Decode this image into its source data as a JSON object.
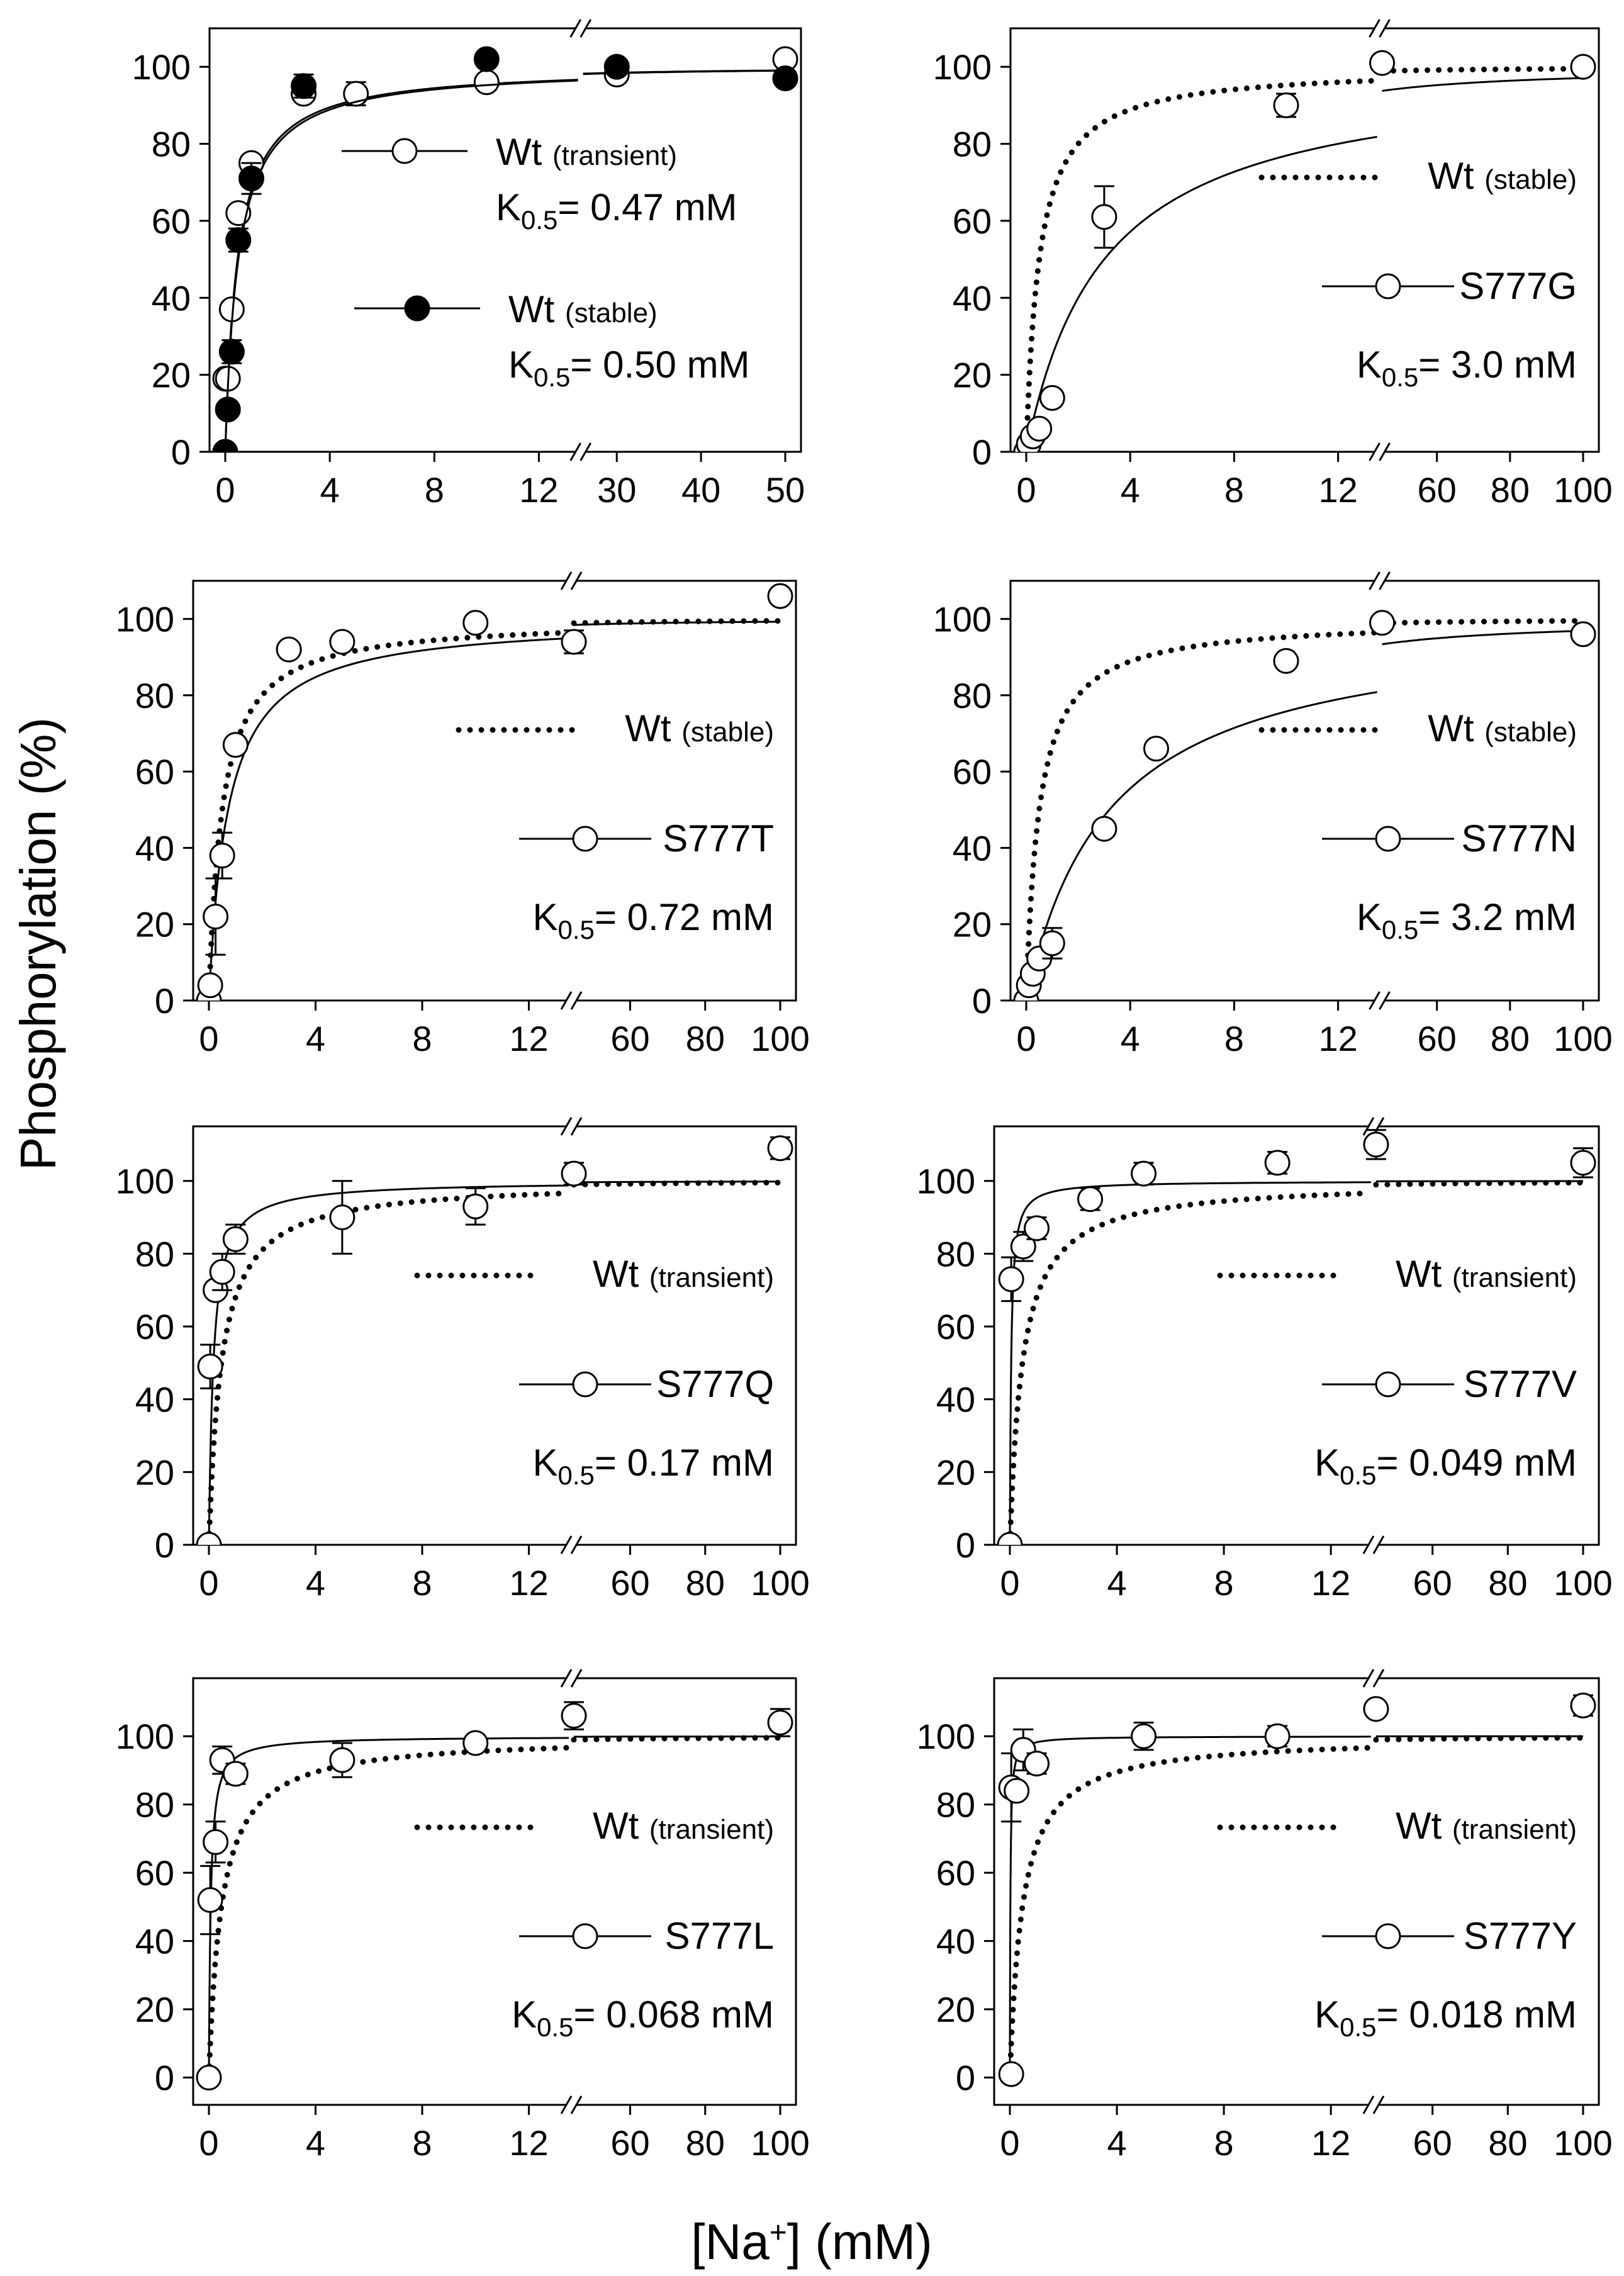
{
  "figure": {
    "ylabel": "Phosphorylation (%)",
    "xlabel_prefix": "[Na",
    "xlabel_sup": "+",
    "xlabel_suffix": "] (mM)"
  },
  "chart_data": [
    {
      "id": "wt",
      "type": "scatter",
      "axis": "A",
      "ylim": [
        0,
        110
      ],
      "yticks": [
        "0",
        "20",
        "40",
        "60",
        "80",
        "100"
      ],
      "xticks": [
        "0",
        "4",
        "8",
        "12",
        "30",
        "40",
        "50"
      ],
      "series": [
        {
          "name": "Wt (transient)",
          "marker": "open",
          "line": "solid",
          "k05": 0.47,
          "points": [
            [
              0,
              19,
              0
            ],
            [
              0.1,
              19,
              0
            ],
            [
              0.25,
              37,
              0
            ],
            [
              0.5,
              62,
              0
            ],
            [
              1,
              75,
              0
            ],
            [
              3,
              93,
              0
            ],
            [
              5,
              93,
              3
            ],
            [
              10,
              96,
              0
            ],
            [
              30,
              98,
              0
            ],
            [
              50,
              102,
              0
            ]
          ]
        },
        {
          "name": "Wt (stable)",
          "marker": "filled",
          "line": "solid",
          "k05": 0.5,
          "points": [
            [
              0,
              0,
              0
            ],
            [
              0.1,
              11,
              0
            ],
            [
              0.25,
              26,
              3
            ],
            [
              0.5,
              55,
              3
            ],
            [
              1,
              71,
              4
            ],
            [
              3,
              95,
              3
            ],
            [
              10,
              102,
              0
            ],
            [
              30,
              100,
              0
            ],
            [
              50,
              97,
              0
            ]
          ]
        }
      ],
      "legend": [
        {
          "style": "open",
          "name": "Wt",
          "qualifier": "(transient)",
          "k_label": "K",
          "k_sub": "0.5",
          "k_value": "= 0.47 mM"
        },
        {
          "style": "filled",
          "name": "Wt",
          "qualifier": "(stable)",
          "k_label": "K",
          "k_sub": "0.5",
          "k_value": "= 0.50 mM"
        }
      ]
    },
    {
      "id": "s777g",
      "type": "scatter",
      "axis": "B",
      "ylim": [
        0,
        110
      ],
      "yticks": [
        "0",
        "20",
        "40",
        "60",
        "80",
        "100"
      ],
      "xticks": [
        "0",
        "4",
        "8",
        "12",
        "60",
        "80",
        "100"
      ],
      "series": [
        {
          "name": "Wt (stable)",
          "marker": "none",
          "line": "dotted",
          "k05": 0.5,
          "points": []
        },
        {
          "name": "S777G",
          "marker": "open",
          "line": "solid",
          "k05": 3.0,
          "points": [
            [
              0,
              0,
              0
            ],
            [
              0.1,
              2,
              0
            ],
            [
              0.25,
              4,
              0
            ],
            [
              0.5,
              6,
              0
            ],
            [
              1,
              14,
              2
            ],
            [
              3,
              61,
              8
            ],
            [
              10,
              90,
              3
            ],
            [
              45,
              101,
              0
            ],
            [
              100,
              100,
              0
            ]
          ]
        }
      ],
      "legend": [
        {
          "style": "dotted",
          "name": "Wt",
          "qualifier": "(stable)"
        },
        {
          "style": "open",
          "name": "S777G"
        },
        {
          "style": "k",
          "k_label": "K",
          "k_sub": "0.5",
          "k_value": "= 3.0 mM"
        }
      ]
    },
    {
      "id": "s777t",
      "type": "scatter",
      "axis": "B",
      "ylim": [
        0,
        110
      ],
      "yticks": [
        "0",
        "20",
        "40",
        "60",
        "80",
        "100"
      ],
      "xticks": [
        "0",
        "4",
        "8",
        "12",
        "60",
        "80",
        "100"
      ],
      "series": [
        {
          "name": "Wt (stable)",
          "marker": "none",
          "line": "dotted",
          "k05": 0.5,
          "points": []
        },
        {
          "name": "S777T",
          "marker": "open",
          "line": "solid",
          "k05": 0.72,
          "points": [
            [
              0,
              0,
              0
            ],
            [
              0.05,
              4,
              0
            ],
            [
              0.25,
              22,
              10
            ],
            [
              0.5,
              38,
              6
            ],
            [
              1,
              67,
              0
            ],
            [
              3,
              92,
              0
            ],
            [
              5,
              94,
              0
            ],
            [
              10,
              99,
              0
            ],
            [
              45,
              94,
              3
            ],
            [
              100,
              106,
              0
            ]
          ]
        }
      ],
      "legend": [
        {
          "style": "dotted",
          "name": "Wt",
          "qualifier": "(stable)"
        },
        {
          "style": "open",
          "name": "S777T"
        },
        {
          "style": "k",
          "k_label": "K",
          "k_sub": "0.5",
          "k_value": "= 0.72 mM"
        }
      ]
    },
    {
      "id": "s777n",
      "type": "scatter",
      "axis": "B",
      "ylim": [
        0,
        110
      ],
      "yticks": [
        "0",
        "20",
        "40",
        "60",
        "80",
        "100"
      ],
      "xticks": [
        "0",
        "4",
        "8",
        "12",
        "60",
        "80",
        "100"
      ],
      "series": [
        {
          "name": "Wt (stable)",
          "marker": "none",
          "line": "dotted",
          "k05": 0.5,
          "points": []
        },
        {
          "name": "S777N",
          "marker": "open",
          "line": "solid",
          "k05": 3.2,
          "points": [
            [
              0,
              0,
              0
            ],
            [
              0.1,
              4,
              0
            ],
            [
              0.25,
              7,
              0
            ],
            [
              0.5,
              11,
              0
            ],
            [
              1,
              15,
              4
            ],
            [
              3,
              45,
              0
            ],
            [
              5,
              66,
              0
            ],
            [
              10,
              89,
              0
            ],
            [
              45,
              99,
              0
            ],
            [
              100,
              96,
              0
            ]
          ]
        }
      ],
      "legend": [
        {
          "style": "dotted",
          "name": "Wt",
          "qualifier": "(stable)"
        },
        {
          "style": "open",
          "name": "S777N"
        },
        {
          "style": "k",
          "k_label": "K",
          "k_sub": "0.5",
          "k_value": "= 3.2 mM"
        }
      ]
    },
    {
      "id": "s777q",
      "type": "scatter",
      "axis": "B",
      "ylim": [
        0,
        115
      ],
      "yticks": [
        "0",
        "20",
        "40",
        "60",
        "80",
        "100"
      ],
      "xticks": [
        "0",
        "4",
        "8",
        "12",
        "60",
        "80",
        "100"
      ],
      "series": [
        {
          "name": "Wt (transient)",
          "marker": "none",
          "line": "dotted",
          "k05": 0.47,
          "points": []
        },
        {
          "name": "S777Q",
          "marker": "open",
          "line": "solid",
          "k05": 0.17,
          "points": [
            [
              0,
              0,
              0
            ],
            [
              0.05,
              49,
              6
            ],
            [
              0.25,
              70,
              0
            ],
            [
              0.5,
              75,
              5
            ],
            [
              1,
              84,
              4
            ],
            [
              5,
              90,
              10
            ],
            [
              10,
              93,
              5
            ],
            [
              45,
              102,
              3
            ],
            [
              100,
              109,
              3
            ]
          ]
        }
      ],
      "legend": [
        {
          "style": "dotted",
          "name": "Wt",
          "qualifier": "(transient)"
        },
        {
          "style": "open",
          "name": "S777Q"
        },
        {
          "style": "k",
          "k_label": "K",
          "k_sub": "0.5",
          "k_value": "= 0.17 mM"
        }
      ]
    },
    {
      "id": "s777v",
      "type": "scatter",
      "axis": "B",
      "ylim": [
        0,
        115
      ],
      "yticks": [
        "0",
        "20",
        "40",
        "60",
        "80",
        "100"
      ],
      "xticks": [
        "0",
        "4",
        "8",
        "12",
        "60",
        "80",
        "100"
      ],
      "series": [
        {
          "name": "Wt (transient)",
          "marker": "none",
          "line": "dotted",
          "k05": 0.47,
          "points": []
        },
        {
          "name": "S777V",
          "marker": "open",
          "line": "solid",
          "k05": 0.049,
          "points": [
            [
              0,
              0,
              0
            ],
            [
              0.05,
              73,
              6
            ],
            [
              0.5,
              82,
              4
            ],
            [
              1,
              87,
              3
            ],
            [
              3,
              95,
              3
            ],
            [
              5,
              102,
              3
            ],
            [
              10,
              105,
              3
            ],
            [
              45,
              110,
              4
            ],
            [
              100,
              105,
              4
            ]
          ]
        }
      ],
      "legend": [
        {
          "style": "dotted",
          "name": "Wt",
          "qualifier": "(transient)"
        },
        {
          "style": "open",
          "name": "S777V"
        },
        {
          "style": "k",
          "k_label": "K",
          "k_sub": "0.5",
          "k_value": "= 0.049 mM"
        }
      ]
    },
    {
      "id": "s777l",
      "type": "scatter",
      "axis": "B",
      "ylim": [
        -8,
        117
      ],
      "yticks": [
        "0",
        "20",
        "40",
        "60",
        "80",
        "100"
      ],
      "xticks": [
        "0",
        "4",
        "8",
        "12",
        "60",
        "80",
        "100"
      ],
      "series": [
        {
          "name": "Wt (transient)",
          "marker": "none",
          "line": "dotted",
          "k05": 0.47,
          "points": []
        },
        {
          "name": "S777L",
          "marker": "open",
          "line": "solid",
          "k05": 0.068,
          "points": [
            [
              0,
              0,
              0
            ],
            [
              0.05,
              52,
              10
            ],
            [
              0.25,
              69,
              6
            ],
            [
              0.5,
              93,
              4
            ],
            [
              1,
              89,
              3
            ],
            [
              5,
              93,
              5
            ],
            [
              10,
              98,
              0
            ],
            [
              45,
              106,
              4
            ],
            [
              100,
              104,
              4
            ]
          ]
        }
      ],
      "legend": [
        {
          "style": "dotted",
          "name": "Wt",
          "qualifier": "(transient)"
        },
        {
          "style": "open",
          "name": "S777L"
        },
        {
          "style": "k",
          "k_label": "K",
          "k_sub": "0.5",
          "k_value": "= 0.068 mM"
        }
      ]
    },
    {
      "id": "s777y",
      "type": "scatter",
      "axis": "B",
      "ylim": [
        -8,
        117
      ],
      "yticks": [
        "0",
        "20",
        "40",
        "60",
        "80",
        "100"
      ],
      "xticks": [
        "0",
        "4",
        "8",
        "12",
        "60",
        "80",
        "100"
      ],
      "series": [
        {
          "name": "Wt (transient)",
          "marker": "none",
          "line": "dotted",
          "k05": 0.47,
          "points": []
        },
        {
          "name": "S777Y",
          "marker": "open",
          "line": "solid",
          "k05": 0.018,
          "points": [
            [
              0.05,
              1,
              0
            ],
            [
              0.05,
              85,
              10
            ],
            [
              0.25,
              84,
              0
            ],
            [
              0.5,
              96,
              6
            ],
            [
              1,
              92,
              3
            ],
            [
              5,
              100,
              4
            ],
            [
              10,
              100,
              3
            ],
            [
              45,
              108,
              0
            ],
            [
              100,
              109,
              3
            ]
          ]
        }
      ],
      "legend": [
        {
          "style": "dotted",
          "name": "Wt",
          "qualifier": "(transient)"
        },
        {
          "style": "open",
          "name": "S777Y"
        },
        {
          "style": "k",
          "k_label": "K",
          "k_sub": "0.5",
          "k_value": "= 0.018 mM"
        }
      ]
    }
  ]
}
